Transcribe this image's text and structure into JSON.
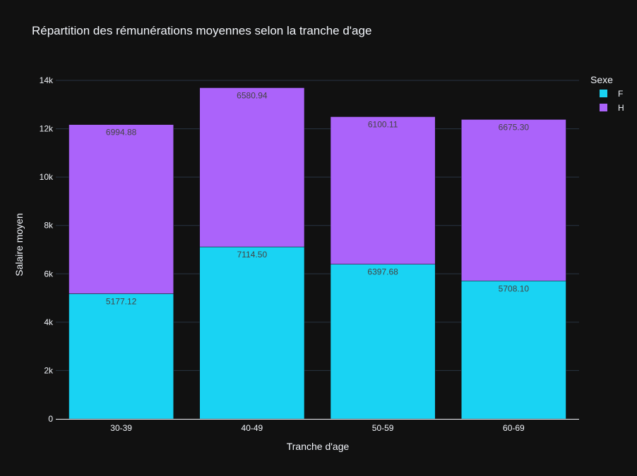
{
  "chart_data": {
    "type": "bar",
    "stacked": true,
    "title": "Répartition des rémunérations moyennes selon la tranche d'age",
    "xlabel": "Tranche d'age",
    "ylabel": "Salaire moyen",
    "categories": [
      "30-39",
      "40-49",
      "50-59",
      "60-69"
    ],
    "series": [
      {
        "name": "F",
        "color": "#19d3f3",
        "values": [
          5177.12,
          7114.5,
          6397.68,
          5708.1
        ],
        "labels": [
          "5177.12",
          "7114.50",
          "6397.68",
          "5708.10"
        ]
      },
      {
        "name": "H",
        "color": "#ab63fa",
        "values": [
          6994.88,
          6580.94,
          6100.11,
          6675.3
        ],
        "labels": [
          "6994.88",
          "6580.94",
          "6100.11",
          "6675.30"
        ]
      }
    ],
    "ylim": [
      0,
      14000
    ],
    "yticks": [
      0,
      2000,
      4000,
      6000,
      8000,
      10000,
      12000,
      14000
    ],
    "ytick_labels": [
      "0",
      "2k",
      "4k",
      "6k",
      "8k",
      "10k",
      "12k",
      "14k"
    ],
    "legend": {
      "title": "Sexe",
      "position": "top-right"
    },
    "grid": true
  }
}
